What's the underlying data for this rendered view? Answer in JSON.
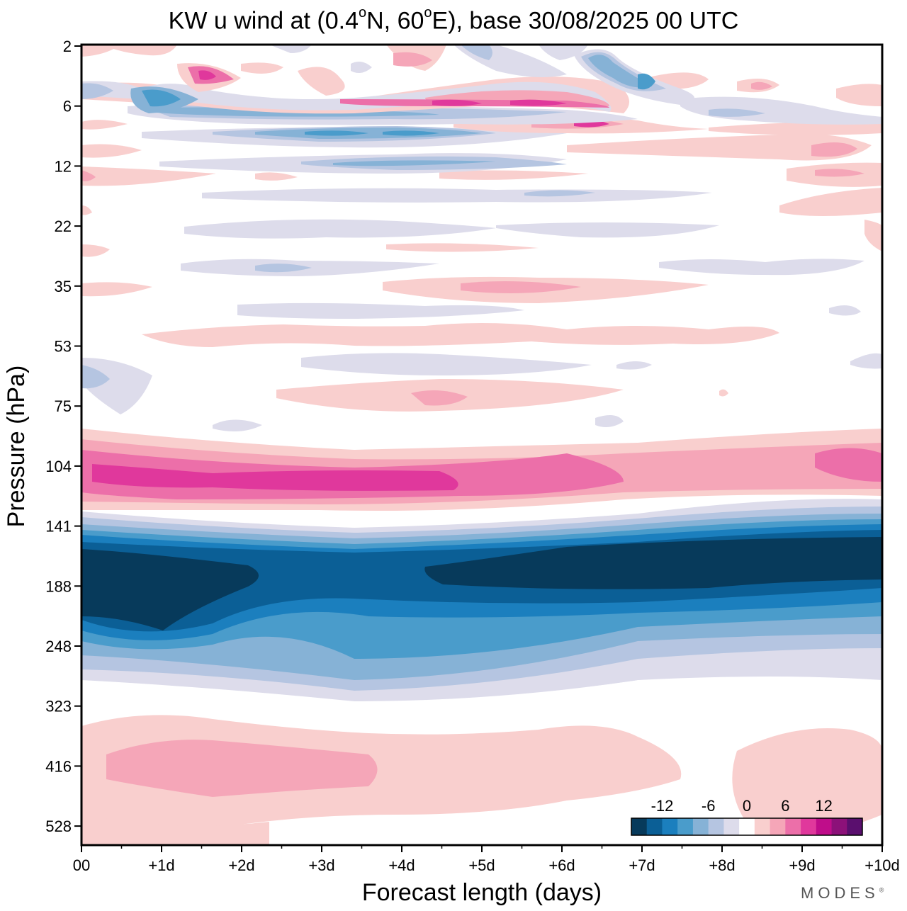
{
  "title": {
    "prefix": "KW u wind at (0.4",
    "lat_dir": "N, 60",
    "suffix": "E),  base 30/08/2025  00 UTC",
    "degree": "o"
  },
  "watermark": {
    "text": "MODES",
    "mark": "®"
  },
  "chart_data": {
    "type": "heatmap",
    "title": "KW u wind at (0.4°N, 60°E),  base 30/08/2025  00 UTC",
    "xlabel": "Forecast length (days)",
    "ylabel": "Pressure (hPa)",
    "x_ticks": [
      "00",
      "+1d",
      "+2d",
      "+3d",
      "+4d",
      "+5d",
      "+6d",
      "+7d",
      "+8d",
      "+9d",
      "+10d"
    ],
    "y_ticks": [
      "2",
      "6",
      "12",
      "22",
      "35",
      "53",
      "75",
      "104",
      "141",
      "188",
      "248",
      "323",
      "416",
      "528"
    ],
    "xlim": [
      0,
      10
    ],
    "colorbar": {
      "labels": [
        "-12",
        "-6",
        "0",
        "6",
        "12"
      ],
      "colors": [
        "#073a5b",
        "#0b5f96",
        "#1b7fbe",
        "#4a9ccb",
        "#86b2d6",
        "#b5c5e1",
        "#dddceb",
        "#ffffff",
        "#f9cfce",
        "#f5a6b8",
        "#ec6fa9",
        "#e0389c",
        "#bf0d8a",
        "#8c1179",
        "#5a0f6e"
      ]
    },
    "bands": [
      {
        "level": 104,
        "value": 10,
        "x": [
          0,
          10
        ],
        "desc": "positive u-wind maximum"
      },
      {
        "level": 188,
        "value": -15,
        "x": [
          0,
          10
        ],
        "desc": "negative u-wind core"
      },
      {
        "level": 416,
        "value": 4,
        "x": [
          0,
          10
        ],
        "desc": "weak positive"
      },
      {
        "level": 6,
        "value": 9,
        "x": [
          4,
          7
        ],
        "desc": "upper positive"
      },
      {
        "level": 9,
        "value": -7,
        "x": [
          1,
          6
        ],
        "desc": "upper negative"
      }
    ]
  }
}
